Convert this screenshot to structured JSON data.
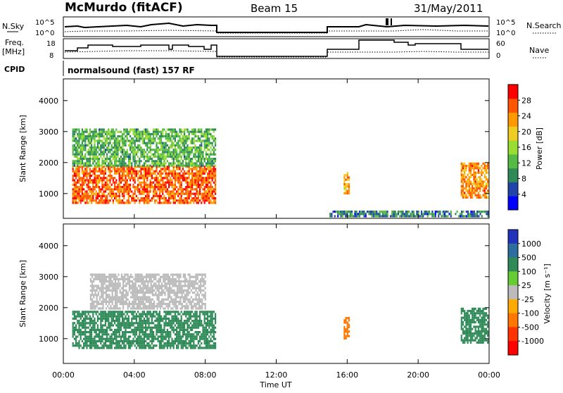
{
  "header": {
    "station": "McMurdo (fitACF)",
    "beam": "Beam 15",
    "date": "31/May/2011"
  },
  "status_panels": {
    "nsky_label": "N.Sky",
    "nsearch_label": "N.Search",
    "log_ticks": [
      "10^5",
      "10^0"
    ],
    "freq_label_1": "Freq.",
    "freq_label_2": "[MHz]",
    "freq_ticks": [
      "18",
      "8"
    ],
    "nave_label": "Nave",
    "nave_ticks": [
      "60",
      "0"
    ],
    "cpid_label": "CPID",
    "cpid_value": "normalsound (fast) 157 RF"
  },
  "colors": {
    "power_scale": [
      "#0000ff",
      "#2244aa",
      "#2e8b57",
      "#55bb44",
      "#99dd33",
      "#eecc22",
      "#ff9900",
      "#ff5500",
      "#ff0000"
    ],
    "velocity_scale": [
      "#2233bb",
      "#2e6e9e",
      "#2e8b57",
      "#66cc33",
      "#bbbbbb",
      "#ffaa00",
      "#ff7700",
      "#ff3300",
      "#ff0000"
    ]
  },
  "chart_data": [
    {
      "type": "heatmap",
      "name": "power",
      "xlabel": "",
      "ylabel": "Slant Range [km]",
      "x_ticks": [
        "00:00",
        "04:00",
        "08:00",
        "12:00",
        "16:00",
        "20:00",
        "00:00"
      ],
      "y_ticks": [
        1000,
        2000,
        3000,
        4000
      ],
      "ylim": [
        200,
        4700
      ],
      "xlim_hours": [
        0,
        24
      ],
      "colorbar": {
        "label": "Power [dB]",
        "ticks": [
          4,
          8,
          12,
          16,
          20,
          24,
          28
        ],
        "range": [
          0,
          32
        ]
      },
      "regions": [
        {
          "t_start": 0.5,
          "t_end": 8.6,
          "range_min": 700,
          "range_max": 1900,
          "value": 26
        },
        {
          "t_start": 0.5,
          "t_end": 8.6,
          "range_min": 1900,
          "range_max": 3100,
          "value": 12
        },
        {
          "t_start": 15.0,
          "t_end": 24.0,
          "range_min": 250,
          "range_max": 450,
          "value": 8
        },
        {
          "t_start": 15.8,
          "t_end": 16.1,
          "range_min": 1000,
          "range_max": 1700,
          "value": 22
        },
        {
          "t_start": 22.4,
          "t_end": 24.0,
          "range_min": 900,
          "range_max": 2000,
          "value": 24
        }
      ]
    },
    {
      "type": "heatmap",
      "name": "velocity",
      "xlabel": "Time UT",
      "ylabel": "Slant Range [km]",
      "x_ticks": [
        "00:00",
        "04:00",
        "08:00",
        "12:00",
        "16:00",
        "20:00",
        "00:00"
      ],
      "y_ticks": [
        1000,
        2000,
        3000,
        4000
      ],
      "ylim": [
        200,
        4700
      ],
      "xlim_hours": [
        0,
        24
      ],
      "colorbar": {
        "label": "Velocity [m s⁻¹]",
        "ticks": [
          1000,
          500,
          100,
          25,
          -25,
          -100,
          -500,
          -1000
        ]
      },
      "regions": [
        {
          "t_start": 0.5,
          "t_end": 8.6,
          "range_min": 700,
          "range_max": 1900,
          "value": 300
        },
        {
          "t_start": 1.5,
          "t_end": 8.0,
          "range_min": 2000,
          "range_max": 3100,
          "value": 0
        },
        {
          "t_start": 15.8,
          "t_end": 16.1,
          "range_min": 1000,
          "range_max": 1700,
          "value": -200
        },
        {
          "t_start": 22.4,
          "t_end": 24.0,
          "range_min": 900,
          "range_max": 2000,
          "value": 300
        }
      ]
    }
  ]
}
